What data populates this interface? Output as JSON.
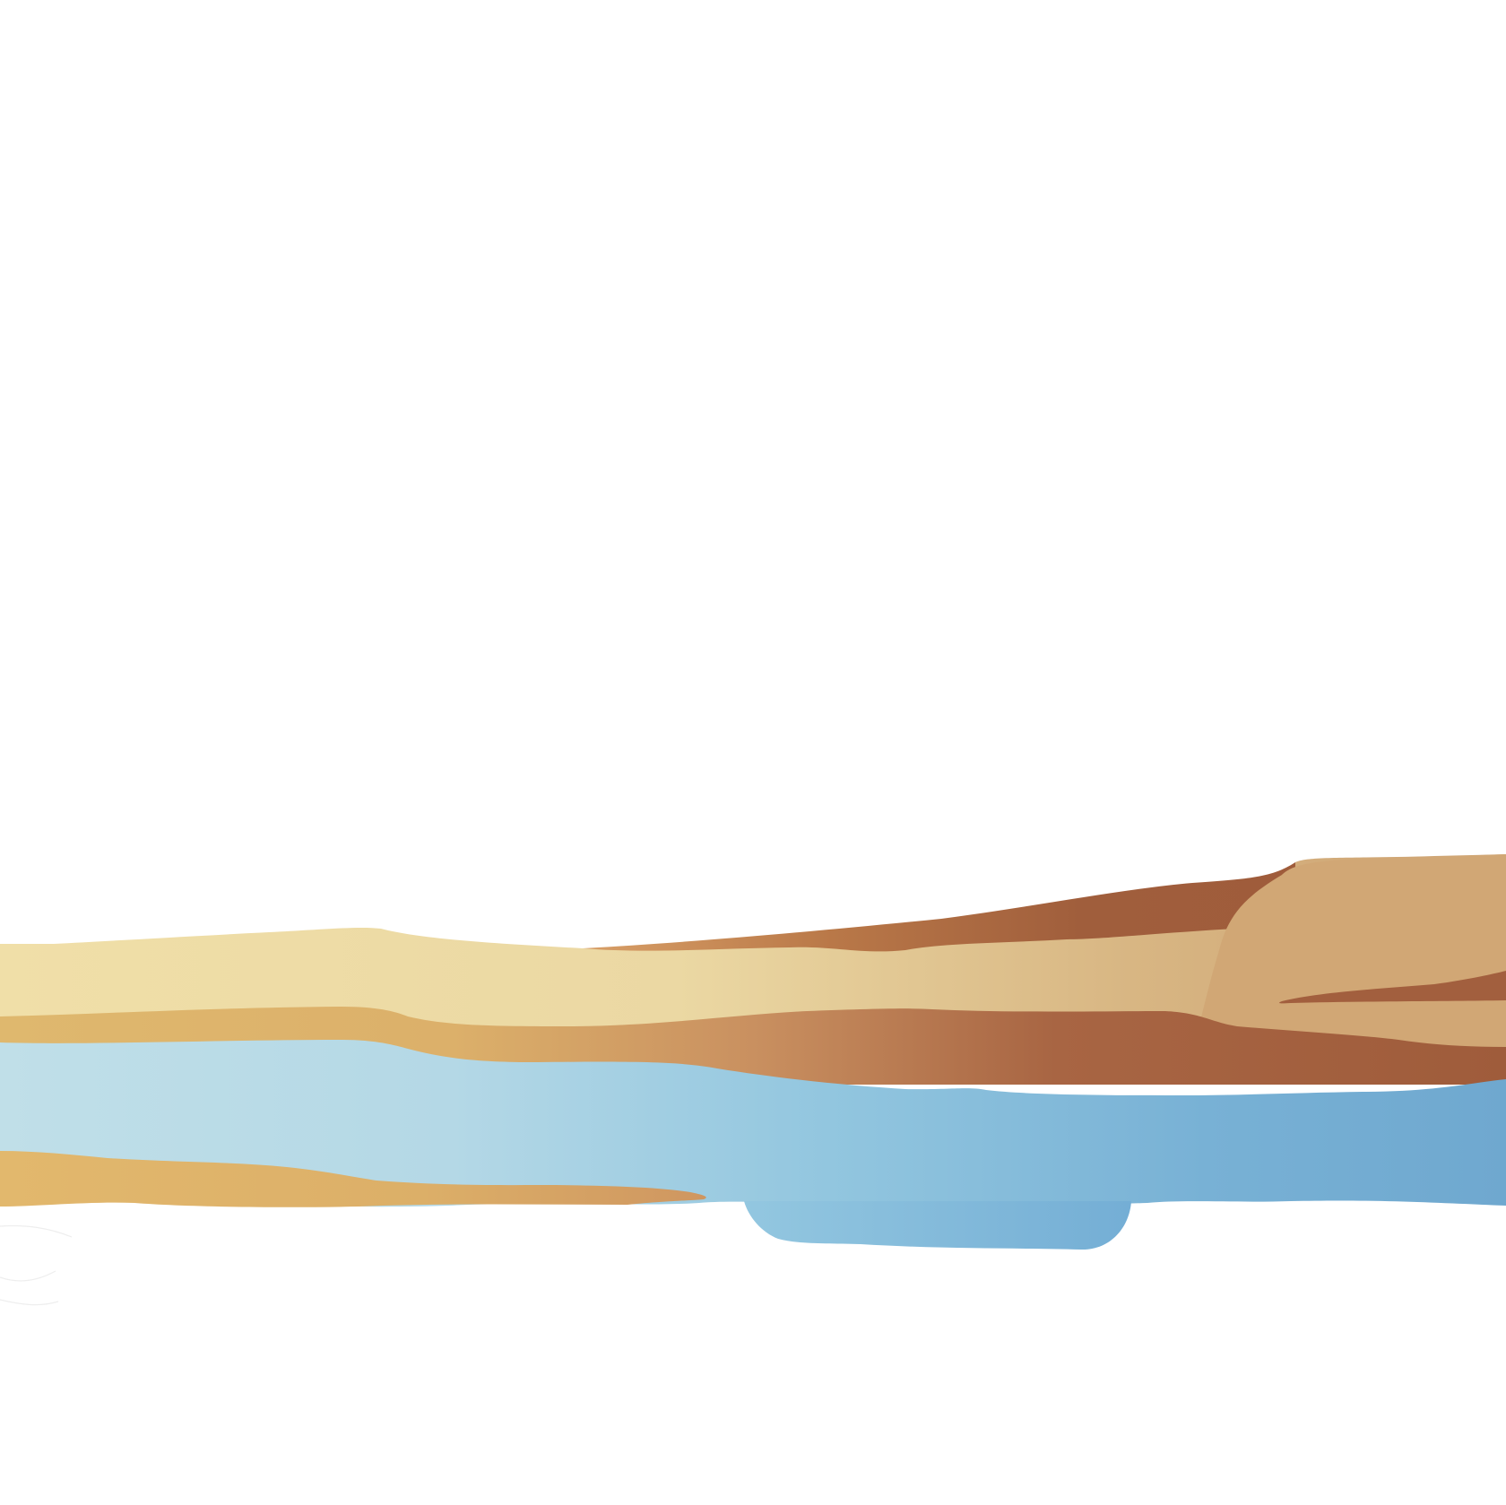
{
  "image": {
    "background": "#ffffff",
    "content": "stratigraphic-cross-section"
  },
  "layers": [
    {
      "id": "sky",
      "kind": "empty",
      "color": "#ffffff"
    },
    {
      "id": "upper-sand-band",
      "kind": "sediment",
      "colors": [
        "#f0dfa8",
        "#e3cd98",
        "#d2ad78"
      ]
    },
    {
      "id": "rust-wedge",
      "kind": "sediment",
      "colors": [
        "#c98f5b",
        "#b36e46",
        "#9f5d3c"
      ]
    },
    {
      "id": "tan-plateau",
      "kind": "sediment",
      "colors": [
        "#d3ab78",
        "#cda272"
      ]
    },
    {
      "id": "middle-ochre-band",
      "kind": "sediment",
      "colors": [
        "#dfb86e",
        "#d4a56a",
        "#c58959",
        "#a25f3e"
      ]
    },
    {
      "id": "aquifer",
      "kind": "water",
      "colors": [
        "#bfe0ea",
        "#9cc9df",
        "#7fb6d8",
        "#6fa8cf"
      ]
    },
    {
      "id": "lower-ochre-band",
      "kind": "sediment",
      "colors": [
        "#e2b86d",
        "#d9ab66",
        "#cf9660"
      ]
    },
    {
      "id": "water-lens",
      "kind": "water",
      "colors": [
        "#92c6e0",
        "#76b0d6"
      ]
    }
  ],
  "palette": {
    "sand-light": "#f0dfa8",
    "tan": "#d3ab78",
    "ochre": "#dfb86e",
    "rust": "#a05e3c",
    "water-light": "#bfe0ea",
    "water-dark": "#6fa8cf"
  }
}
